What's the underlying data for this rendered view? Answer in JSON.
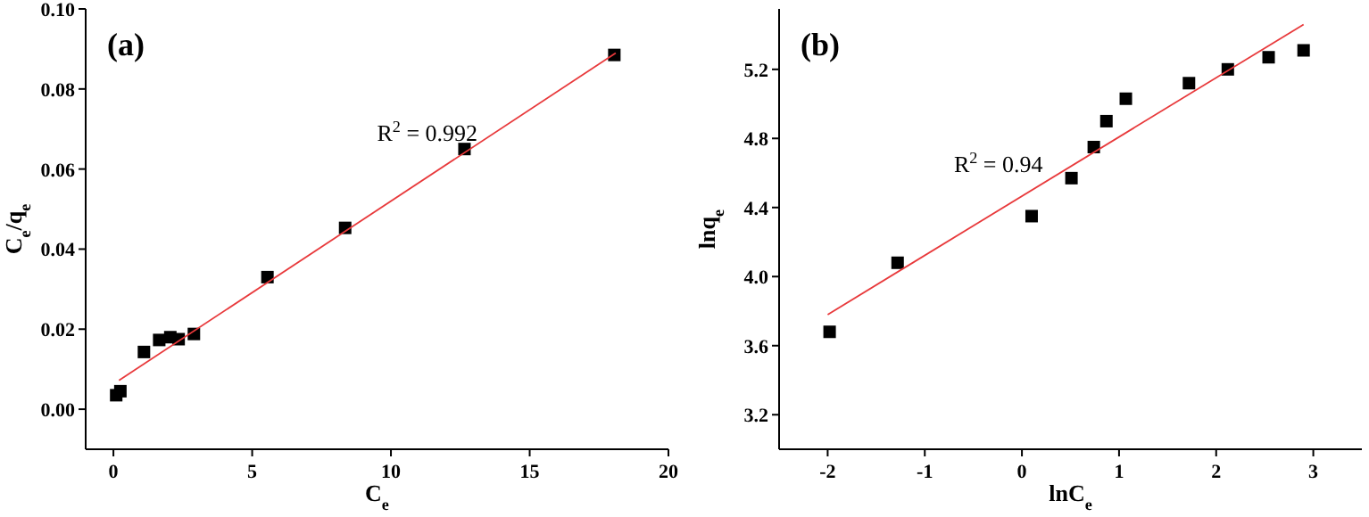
{
  "chart_data": [
    {
      "type": "scatter",
      "title": "(a)",
      "xlabel": "C$_{e}$",
      "ylabel": "C$_{e}$/q$_{e}$",
      "xlim": [
        -1,
        20
      ],
      "ylim": [
        -0.01,
        0.1
      ],
      "xticks": [
        0,
        5,
        10,
        15,
        20
      ],
      "yticks": [
        {
          "value": 0,
          "label": "0.00"
        },
        {
          "value": 0.02,
          "label": "0.02"
        },
        {
          "value": 0.04,
          "label": "0.04"
        },
        {
          "value": 0.06,
          "label": "0.06"
        },
        {
          "value": 0.08,
          "label": "0.08"
        },
        {
          "value": 0.1,
          "label": "0.10"
        }
      ],
      "annotations": [
        "R$^{2}$ = 0.992"
      ],
      "series": [
        {
          "type": "scatter",
          "color": "#000000",
          "marker": "square",
          "x": [
            0.1,
            0.25,
            1.1,
            1.65,
            2.05,
            2.35,
            2.9,
            5.55,
            8.35,
            12.65,
            18.05
          ],
          "values": [
            0.0035,
            0.0045,
            0.0143,
            0.0173,
            0.018,
            0.0175,
            0.0188,
            0.033,
            0.0453,
            0.065,
            0.0885
          ]
        },
        {
          "type": "line",
          "color": "#e8393b",
          "line_style": "solid",
          "x": [
            0.2,
            18.1
          ],
          "values": [
            0.0072,
            0.089
          ]
        }
      ]
    },
    {
      "type": "scatter",
      "title": "(b)",
      "xlabel": "lnC$_{e}$",
      "ylabel": "lnq$_{e}$",
      "xlim": [
        -2.5,
        3.5
      ],
      "ylim": [
        3.0,
        5.55
      ],
      "xticks": [
        -2,
        -1,
        0,
        1,
        2,
        3
      ],
      "yticks": [
        3.2,
        3.6,
        {
          "value": 4,
          "label": "4.0"
        },
        4.4,
        4.8,
        5.2
      ],
      "annotations": [
        "R$^{2}$ = 0.94"
      ],
      "series": [
        {
          "type": "scatter",
          "color": "#000000",
          "marker": "square",
          "x": [
            -1.98,
            -1.28,
            0.1,
            0.51,
            0.74,
            0.87,
            1.07,
            1.72,
            2.12,
            2.54,
            2.9
          ],
          "values": [
            3.68,
            4.08,
            4.35,
            4.57,
            4.75,
            4.9,
            5.03,
            5.12,
            5.2,
            5.27,
            5.31
          ]
        },
        {
          "type": "line",
          "color": "#e8393b",
          "line_style": "solid",
          "x": [
            -2,
            2.9
          ],
          "values": [
            3.78,
            5.46
          ]
        }
      ]
    }
  ]
}
